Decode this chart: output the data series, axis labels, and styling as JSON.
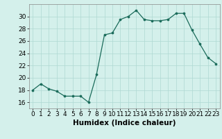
{
  "x": [
    0,
    1,
    2,
    3,
    4,
    5,
    6,
    7,
    8,
    9,
    10,
    11,
    12,
    13,
    14,
    15,
    16,
    17,
    18,
    19,
    20,
    21,
    22,
    23
  ],
  "y": [
    18,
    19,
    18.2,
    17.8,
    17,
    17,
    17,
    16,
    20.5,
    27,
    27.3,
    29.5,
    30,
    31,
    29.5,
    29.3,
    29.3,
    29.5,
    30.5,
    30.5,
    27.8,
    25.5,
    23.3,
    22.3
  ],
  "line_color": "#1a6b5a",
  "marker_color": "#1a6b5a",
  "bg_color": "#d4f0eb",
  "grid_color": "#aed8d2",
  "xlabel": "Humidex (Indice chaleur)",
  "ylim": [
    15,
    32
  ],
  "xlim": [
    -0.5,
    23.5
  ],
  "yticks": [
    16,
    18,
    20,
    22,
    24,
    26,
    28,
    30
  ],
  "xticks": [
    0,
    1,
    2,
    3,
    4,
    5,
    6,
    7,
    8,
    9,
    10,
    11,
    12,
    13,
    14,
    15,
    16,
    17,
    18,
    19,
    20,
    21,
    22,
    23
  ],
  "xlabel_fontsize": 7.5,
  "tick_fontsize": 6.5
}
